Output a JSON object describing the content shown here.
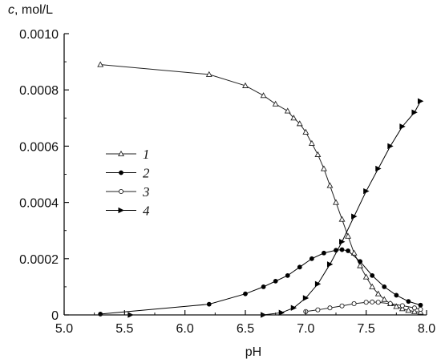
{
  "chart_data": {
    "type": "line",
    "title": "",
    "ylabel_var": "c",
    "ylabel_unit": ", mol/L",
    "xlabel": "pH",
    "xlim": [
      5.0,
      8.0
    ],
    "ylim": [
      0,
      0.001
    ],
    "xticks": [
      "5.0",
      "5.5",
      "6.0",
      "6.5",
      "7.0",
      "7.5",
      "8.0"
    ],
    "xtick_values": [
      5.0,
      5.5,
      6.0,
      6.5,
      7.0,
      7.5,
      8.0
    ],
    "yticks": [
      "0",
      "0.0002",
      "0.0004",
      "0.0006",
      "0.0008",
      "0.0010"
    ],
    "ytick_values": [
      0,
      0.0002,
      0.0004,
      0.0006,
      0.0008,
      0.001
    ],
    "legend_position": "left-center",
    "grid": false,
    "series": [
      {
        "name": "1",
        "marker": "open-triangle",
        "color": "#222222",
        "x": [
          5.3,
          6.2,
          6.5,
          6.65,
          6.75,
          6.85,
          6.9,
          6.95,
          7.0,
          7.05,
          7.1,
          7.15,
          7.2,
          7.25,
          7.3,
          7.35,
          7.4,
          7.45,
          7.5,
          7.55,
          7.6,
          7.65,
          7.7,
          7.75,
          7.8,
          7.85,
          7.9,
          7.95
        ],
        "values": [
          0.00089,
          0.000855,
          0.000815,
          0.00078,
          0.00075,
          0.000725,
          0.0007,
          0.00068,
          0.00065,
          0.00061,
          0.00057,
          0.00052,
          0.00046,
          0.0004,
          0.00034,
          0.00028,
          0.00022,
          0.000175,
          0.000135,
          0.0001,
          7.5e-05,
          5.5e-05,
          4e-05,
          3e-05,
          2.2e-05,
          1.6e-05,
          1.2e-05,
          1e-05
        ]
      },
      {
        "name": "2",
        "marker": "filled-circle",
        "color": "#000000",
        "x": [
          5.3,
          6.2,
          6.5,
          6.65,
          6.75,
          6.85,
          6.95,
          7.05,
          7.15,
          7.25,
          7.3,
          7.35,
          7.45,
          7.55,
          7.65,
          7.75,
          7.85,
          7.95
        ],
        "values": [
          3e-06,
          3.8e-05,
          7.5e-05,
          0.0001,
          0.00012,
          0.00014,
          0.00017,
          0.0002,
          0.00022,
          0.00023,
          0.000232,
          0.000228,
          0.00019,
          0.00014,
          0.0001,
          7e-05,
          4.8e-05,
          3.5e-05
        ]
      },
      {
        "name": "3",
        "marker": "open-circle",
        "color": "#222222",
        "x": [
          7.0,
          7.1,
          7.2,
          7.3,
          7.4,
          7.5,
          7.55,
          7.6,
          7.7,
          7.8,
          7.9,
          7.95
        ],
        "values": [
          1.2e-05,
          1.8e-05,
          2.5e-05,
          3.2e-05,
          4e-05,
          4.5e-05,
          4.6e-05,
          4.5e-05,
          4e-05,
          3.3e-05,
          2.5e-05,
          2e-05
        ]
      },
      {
        "name": "4",
        "marker": "filled-triangle-right",
        "color": "#000000",
        "x": [
          5.55,
          6.65,
          6.8,
          6.9,
          7.0,
          7.1,
          7.2,
          7.3,
          7.4,
          7.5,
          7.6,
          7.7,
          7.8,
          7.9,
          7.95
        ],
        "values": [
          0.0,
          0.0,
          8e-06,
          2.5e-05,
          6e-05,
          0.00011,
          0.00018,
          0.00026,
          0.00035,
          0.00044,
          0.00052,
          0.0006,
          0.00067,
          0.00072,
          0.00076
        ]
      }
    ]
  }
}
